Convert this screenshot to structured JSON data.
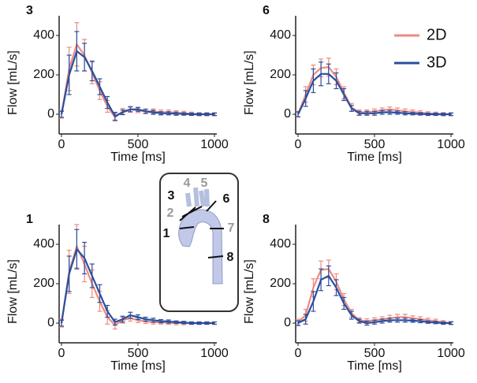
{
  "chart_data": [
    {
      "type": "line",
      "title": "3",
      "xlabel": "Time [ms]",
      "ylabel": "Flow [mL/s]",
      "x": [
        0,
        50,
        100,
        150,
        200,
        250,
        300,
        350,
        400,
        450,
        500,
        550,
        600,
        650,
        700,
        750,
        800,
        850,
        900,
        950,
        1000
      ],
      "xlim": [
        0,
        1000
      ],
      "xticks": [
        0,
        500,
        1000
      ],
      "ylim": [
        -100,
        500
      ],
      "yticks": [
        0,
        200,
        400
      ],
      "series": [
        {
          "color": "#f08a80",
          "values": [
            0,
            230,
            355,
            300,
            210,
            120,
            40,
            -15,
            15,
            25,
            20,
            15,
            15,
            10,
            10,
            8,
            5,
            3,
            0,
            0,
            0
          ],
          "errors": [
            20,
            110,
            110,
            80,
            55,
            45,
            30,
            20,
            15,
            15,
            12,
            12,
            12,
            12,
            12,
            10,
            10,
            8,
            8,
            8,
            8
          ]
        },
        {
          "color": "#2a4f9e",
          "values": [
            0,
            200,
            320,
            290,
            220,
            140,
            60,
            -10,
            10,
            25,
            25,
            15,
            10,
            5,
            5,
            3,
            2,
            0,
            0,
            0,
            0
          ],
          "errors": [
            15,
            100,
            100,
            70,
            50,
            40,
            30,
            20,
            12,
            12,
            10,
            10,
            10,
            8,
            8,
            8,
            6,
            6,
            6,
            6,
            6
          ]
        }
      ]
    },
    {
      "type": "line",
      "title": "6",
      "xlabel": "Time [ms]",
      "ylabel": "Flow [mL/s]",
      "legend": "upper right",
      "x": [
        0,
        50,
        100,
        150,
        200,
        250,
        300,
        350,
        400,
        450,
        500,
        550,
        600,
        650,
        700,
        750,
        800,
        850,
        900,
        950,
        1000
      ],
      "xlim": [
        0,
        1000
      ],
      "xticks": [
        0,
        500,
        1000
      ],
      "ylim": [
        -100,
        500
      ],
      "yticks": [
        0,
        200,
        400
      ],
      "series": [
        {
          "name": "2D",
          "color": "#f08a80",
          "values": [
            0,
            100,
            200,
            235,
            240,
            190,
            110,
            35,
            10,
            10,
            15,
            20,
            25,
            20,
            15,
            12,
            8,
            5,
            3,
            0,
            0
          ],
          "errors": [
            15,
            40,
            50,
            45,
            45,
            40,
            30,
            20,
            12,
            12,
            12,
            12,
            12,
            12,
            12,
            10,
            10,
            8,
            8,
            8,
            8
          ]
        },
        {
          "name": "3D",
          "color": "#2a4f9e",
          "values": [
            0,
            80,
            170,
            205,
            205,
            170,
            100,
            30,
            5,
            5,
            5,
            10,
            10,
            8,
            5,
            3,
            2,
            0,
            0,
            0,
            0
          ],
          "errors": [
            12,
            40,
            60,
            60,
            50,
            40,
            30,
            15,
            10,
            10,
            10,
            10,
            10,
            8,
            8,
            6,
            6,
            6,
            6,
            6,
            6
          ]
        }
      ]
    },
    {
      "type": "line",
      "title": "1",
      "xlabel": "Time [ms]",
      "ylabel": "Flow [mL/s]",
      "x": [
        0,
        50,
        100,
        150,
        200,
        250,
        300,
        350,
        400,
        450,
        500,
        550,
        600,
        650,
        700,
        750,
        800,
        850,
        900,
        950,
        1000
      ],
      "xlim": [
        0,
        1000
      ],
      "xticks": [
        0,
        500,
        1000
      ],
      "ylim": [
        -100,
        500
      ],
      "yticks": [
        0,
        200,
        400
      ],
      "series": [
        {
          "color": "#f08a80",
          "values": [
            0,
            260,
            390,
            300,
            200,
            110,
            30,
            -10,
            15,
            25,
            15,
            8,
            5,
            3,
            2,
            0,
            0,
            0,
            0,
            0,
            0
          ],
          "errors": [
            20,
            110,
            110,
            90,
            70,
            50,
            35,
            20,
            15,
            15,
            12,
            10,
            10,
            8,
            8,
            8,
            8,
            6,
            6,
            6,
            6
          ]
        },
        {
          "color": "#2a4f9e",
          "values": [
            0,
            250,
            375,
            330,
            240,
            150,
            60,
            5,
            20,
            40,
            30,
            20,
            15,
            10,
            8,
            5,
            3,
            0,
            0,
            0,
            0
          ],
          "errors": [
            15,
            90,
            100,
            80,
            60,
            45,
            30,
            15,
            15,
            15,
            12,
            10,
            10,
            8,
            8,
            6,
            6,
            6,
            6,
            6,
            6
          ]
        }
      ]
    },
    {
      "type": "line",
      "title": "8",
      "xlabel": "Time [ms]",
      "ylabel": "Flow [mL/s]",
      "x": [
        0,
        50,
        100,
        150,
        200,
        250,
        300,
        350,
        400,
        450,
        500,
        550,
        600,
        650,
        700,
        750,
        800,
        850,
        900,
        950,
        1000
      ],
      "xlim": [
        0,
        1000
      ],
      "xticks": [
        0,
        500,
        1000
      ],
      "ylim": [
        -100,
        500
      ],
      "yticks": [
        0,
        200,
        400
      ],
      "series": [
        {
          "color": "#f08a80",
          "values": [
            5,
            40,
            180,
            270,
            275,
            210,
            120,
            50,
            15,
            10,
            15,
            20,
            25,
            30,
            30,
            25,
            20,
            15,
            10,
            5,
            0
          ],
          "errors": [
            15,
            30,
            45,
            45,
            45,
            40,
            30,
            20,
            12,
            12,
            12,
            12,
            15,
            15,
            15,
            12,
            12,
            10,
            10,
            8,
            8
          ]
        },
        {
          "color": "#2a4f9e",
          "values": [
            0,
            20,
            110,
            220,
            240,
            180,
            100,
            40,
            10,
            0,
            5,
            10,
            15,
            15,
            15,
            12,
            10,
            5,
            3,
            0,
            0
          ],
          "errors": [
            12,
            25,
            50,
            55,
            50,
            40,
            30,
            20,
            10,
            10,
            10,
            10,
            10,
            10,
            10,
            8,
            8,
            6,
            6,
            6,
            6
          ]
        }
      ]
    }
  ],
  "diagram": {
    "labels": [
      "4",
      "5",
      "3",
      "6",
      "2",
      "1",
      "7",
      "8"
    ]
  }
}
